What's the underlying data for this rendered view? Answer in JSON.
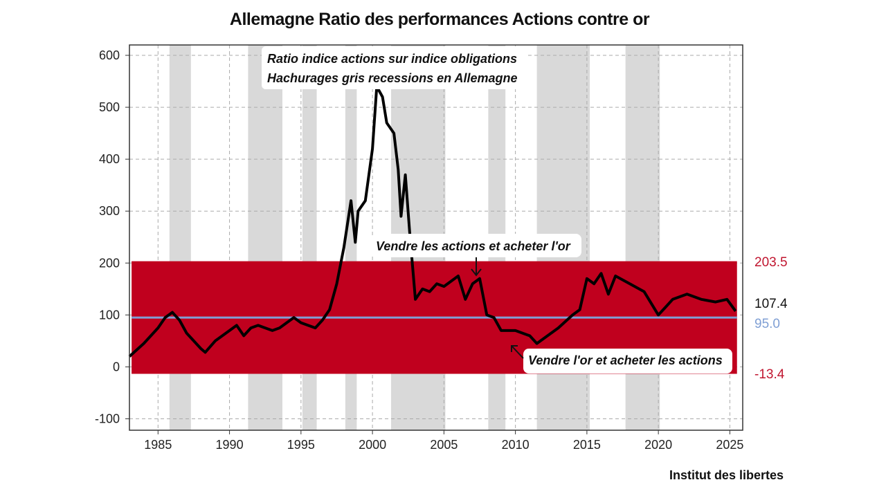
{
  "chart_data": {
    "type": "line",
    "title": "Allemagne Ratio des performances Actions contre or",
    "source": "Institut des libertes",
    "xlim": [
      1983.0,
      2025.9
    ],
    "ylim": [
      -122,
      620
    ],
    "x_ticks": [
      1985,
      1990,
      1995,
      2000,
      2005,
      2010,
      2015,
      2020,
      2025
    ],
    "y_ticks": [
      -100,
      0,
      100,
      200,
      300,
      400,
      500,
      600
    ],
    "grid": true,
    "annotations": {
      "legend_line1": "Ratio indice actions sur indice obligations",
      "legend_line2": "Hachurages gris recessions en Allemagne",
      "sell_stocks": "Vendre les actions et acheter  l'or",
      "sell_gold": "Vendre  l'or et acheter les actions"
    },
    "band": {
      "upper": 203.5,
      "lower": -13.4,
      "upper_label": "203.5",
      "lower_label": "-13.4",
      "color": "#c0001e"
    },
    "mean": {
      "value": 95.0,
      "label": "95.0",
      "color": "#7f9fd4"
    },
    "last": {
      "value": 107.4,
      "label": "107.4"
    },
    "recessions": [
      [
        1985.8,
        1987.3
      ],
      [
        1991.3,
        1993.7
      ],
      [
        1995.1,
        1996.1
      ],
      [
        1998.1,
        1998.9
      ],
      [
        2001.3,
        2005.1
      ],
      [
        2008.1,
        2009.3
      ],
      [
        2011.5,
        2015.2
      ],
      [
        2017.7,
        2020.1
      ]
    ],
    "series": [
      {
        "name": "Ratio",
        "x": [
          1983.0,
          1984,
          1985,
          1985.5,
          1986,
          1986.5,
          1987,
          1988,
          1988.3,
          1989,
          1990,
          1990.5,
          1991,
          1991.5,
          1992,
          1993,
          1993.5,
          1994.5,
          1995,
          1996,
          1996.5,
          1997,
          1997.5,
          1998,
          1998.5,
          1998.8,
          1999,
          1999.5,
          2000,
          2000.3,
          2000.7,
          2001,
          2001.5,
          2001.8,
          2002,
          2002.3,
          2002.6,
          2003,
          2003.5,
          2004,
          2004.5,
          2005,
          2006,
          2006.5,
          2007,
          2007.5,
          2008,
          2008.5,
          2009,
          2010,
          2011,
          2011.5,
          2012,
          2013,
          2014,
          2014.5,
          2015,
          2015.5,
          2016,
          2016.5,
          2017,
          2018,
          2019,
          2020,
          2020.5,
          2021,
          2022,
          2023,
          2024,
          2024.8,
          2025.4
        ],
        "values": [
          20,
          45,
          75,
          95,
          105,
          90,
          65,
          35,
          28,
          50,
          70,
          80,
          60,
          75,
          80,
          70,
          75,
          95,
          85,
          75,
          90,
          110,
          160,
          230,
          320,
          240,
          300,
          320,
          420,
          540,
          520,
          470,
          450,
          380,
          290,
          370,
          260,
          130,
          150,
          145,
          160,
          155,
          175,
          130,
          160,
          170,
          100,
          95,
          70,
          70,
          60,
          45,
          55,
          75,
          100,
          110,
          170,
          160,
          180,
          140,
          175,
          160,
          145,
          100,
          115,
          130,
          140,
          130,
          125,
          130,
          107.4
        ]
      }
    ]
  }
}
